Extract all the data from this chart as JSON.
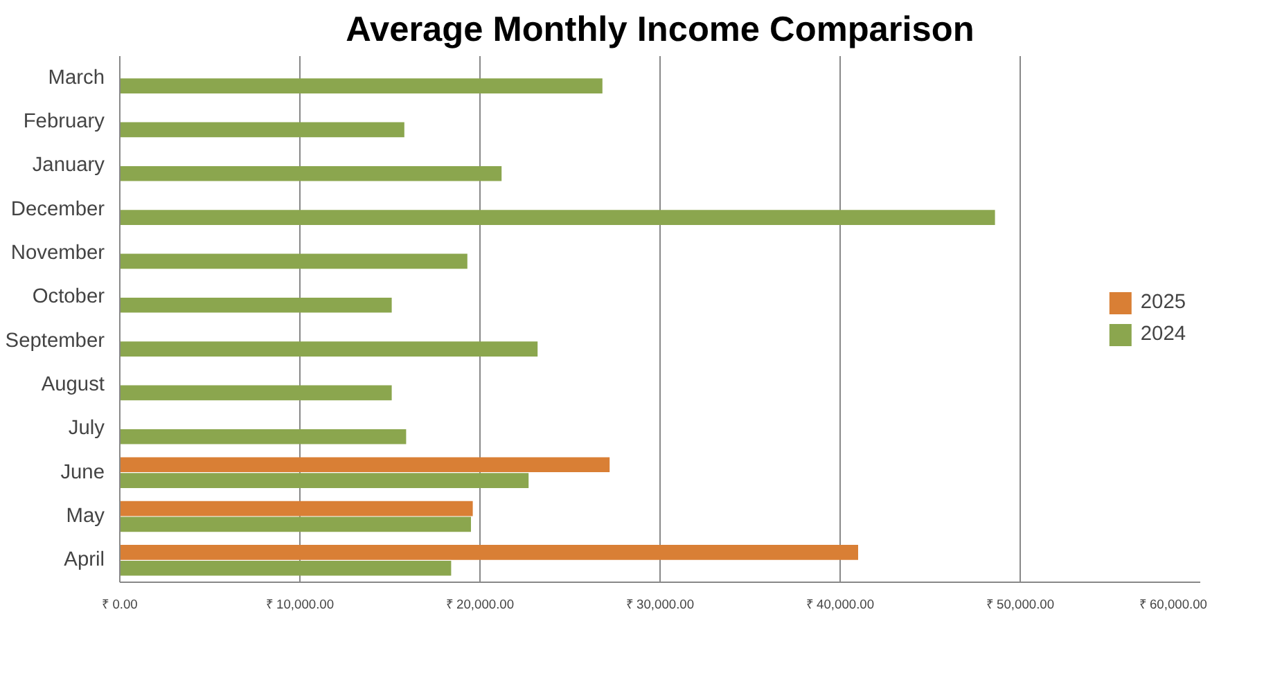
{
  "chart_data": {
    "type": "bar",
    "orientation": "horizontal",
    "title": "Average Monthly Income Comparison",
    "categories": [
      "March",
      "February",
      "January",
      "December",
      "November",
      "October",
      "September",
      "August",
      "July",
      "June",
      "May",
      "April"
    ],
    "series": [
      {
        "name": "2025",
        "color": "#d97f35",
        "values": [
          null,
          null,
          null,
          null,
          null,
          null,
          null,
          null,
          null,
          27200,
          19600,
          41000
        ]
      },
      {
        "name": "2024",
        "color": "#8ba64e",
        "values": [
          26800,
          15800,
          21200,
          48600,
          19300,
          15100,
          23200,
          15100,
          15900,
          22700,
          19500,
          18400
        ]
      }
    ],
    "xlim": [
      0,
      60000
    ],
    "xticks": [
      {
        "value": 0,
        "label": "₹ 0.00"
      },
      {
        "value": 10000,
        "label": "₹ 10,000.00"
      },
      {
        "value": 20000,
        "label": "₹ 20,000.00"
      },
      {
        "value": 30000,
        "label": "₹ 30,000.00"
      },
      {
        "value": 40000,
        "label": "₹ 40,000.00"
      },
      {
        "value": 50000,
        "label": "₹ 50,000.00"
      },
      {
        "value": 60000,
        "label": "₹ 60,000.00"
      }
    ],
    "grid": "x",
    "legend": "right"
  }
}
